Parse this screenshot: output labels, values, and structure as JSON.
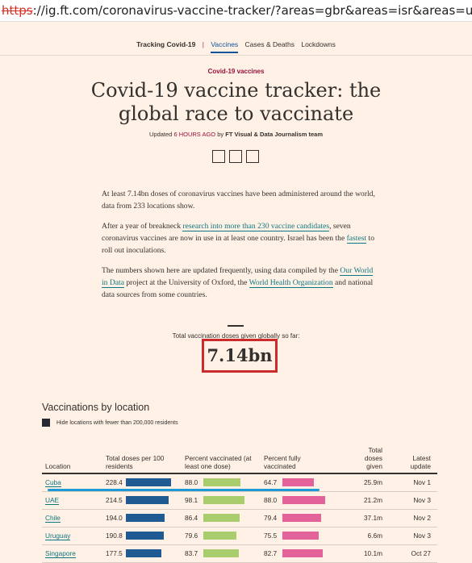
{
  "url": {
    "protocol": "https",
    "rest": "://ig.ft.com/coronavirus-vaccine-tracker/?areas=gbr&areas=isr&areas=usa&areas=eue&cu"
  },
  "nav": {
    "brand": "Tracking Covid-19",
    "sep": "|",
    "items": [
      "Vaccines",
      "Cases & Deaths",
      "Lockdowns"
    ],
    "active": "Vaccines"
  },
  "article": {
    "kicker": "Covid-19 vaccines",
    "headline": "Covid-19 vaccine tracker: the global race to vaccinate",
    "byline_prefix": "Updated",
    "byline_time": "6 HOURS AGO",
    "byline_by": "by",
    "byline_team": "FT Visual & Data Journalism team",
    "p1": "At least 7.14bn doses of coronavirus vaccines have been administered around the world, data from 233 locations show.",
    "p2a": "After a year of breakneck ",
    "p2_link": "research into more than 230 vaccine candidates",
    "p2b": ", seven coronavirus vaccines are now in use in at least one country. Israel has been the ",
    "p2_link2": "fastest",
    "p2c": " to roll out inoculations.",
    "p3a": "The numbers shown here are updated frequently, using data compiled by the ",
    "p3_link1": "Our World in Data",
    "p3b": " project at the University of Oxford, the ",
    "p3_link2": "World Health Organization",
    "p3c": " and national data sources from some countries."
  },
  "total": {
    "label": "Total vaccination doses given globally so far:",
    "value": "7.14bn"
  },
  "section": {
    "title": "Vaccinations by location",
    "hide_label": "Hide locations with fewer than 200,000 residents"
  },
  "table": {
    "headers": {
      "location": "Location",
      "doses_per_100": "Total doses per 100 residents",
      "pct_one": "Percent vaccinated (at least one dose)",
      "pct_full": "Percent fully vaccinated",
      "total_doses": "Total doses given",
      "latest": "Latest update"
    },
    "rows": [
      {
        "location": "Cuba",
        "doses": "228.4",
        "doses_v": 228.4,
        "one": "88.0",
        "one_v": 88.0,
        "full": "64.7",
        "full_v": 64.7,
        "total": "25.9m",
        "date": "Nov 1"
      },
      {
        "location": "UAE",
        "doses": "214.5",
        "doses_v": 214.5,
        "one": "98.1",
        "one_v": 98.1,
        "full": "88.0",
        "full_v": 88.0,
        "total": "21.2m",
        "date": "Nov 3"
      },
      {
        "location": "Chile",
        "doses": "194.0",
        "doses_v": 194.0,
        "one": "86.4",
        "one_v": 86.4,
        "full": "79.4",
        "full_v": 79.4,
        "total": "37.1m",
        "date": "Nov 2"
      },
      {
        "location": "Uruguay",
        "doses": "190.8",
        "doses_v": 190.8,
        "one": "79.6",
        "one_v": 79.6,
        "full": "75.5",
        "full_v": 75.5,
        "total": "6.6m",
        "date": "Nov 3"
      },
      {
        "location": "Singapore",
        "doses": "177.5",
        "doses_v": 177.5,
        "one": "83.7",
        "one_v": 83.7,
        "full": "82.7",
        "full_v": 82.7,
        "total": "10.1m",
        "date": "Oct 27"
      }
    ]
  },
  "colors": {
    "doses_bar": "#1f5a93",
    "one_bar": "#a9cc6c",
    "full_bar": "#e3629a",
    "annotation": "#1d9ad6",
    "highlight_box": "#cc2b2b"
  }
}
